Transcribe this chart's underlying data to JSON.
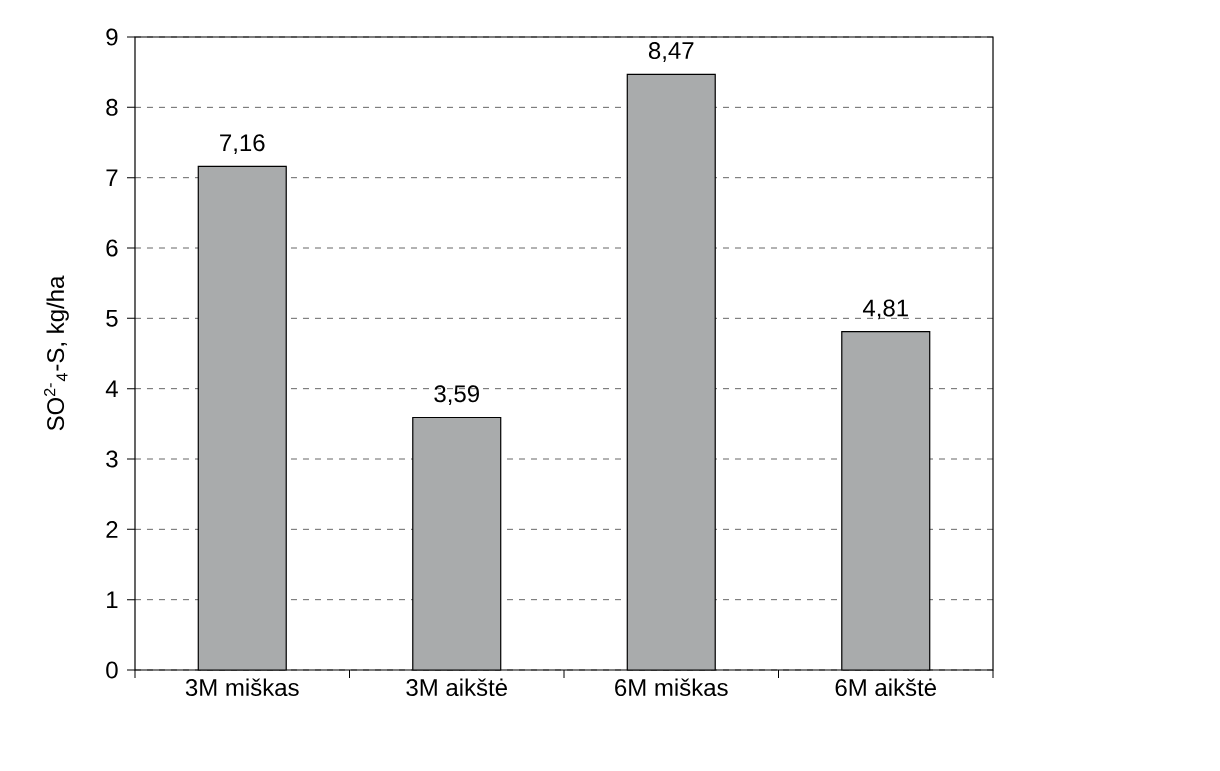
{
  "chart_data": {
    "type": "bar",
    "categories": [
      "3M miškas",
      "3M aikštė",
      "6M miškas",
      "6M aikštė"
    ],
    "values": [
      7.16,
      3.59,
      8.47,
      4.81
    ],
    "value_labels": [
      "7,16",
      "3,59",
      "8,47",
      "4,81"
    ],
    "color": "#a9abac",
    "ylabel": "SO$^{2-}$$_{4}$-S, kg/ha",
    "ylim": [
      0,
      9
    ],
    "yticks": [
      0,
      1,
      2,
      3,
      4,
      5,
      6,
      7,
      8,
      9
    ],
    "grid": "y"
  }
}
